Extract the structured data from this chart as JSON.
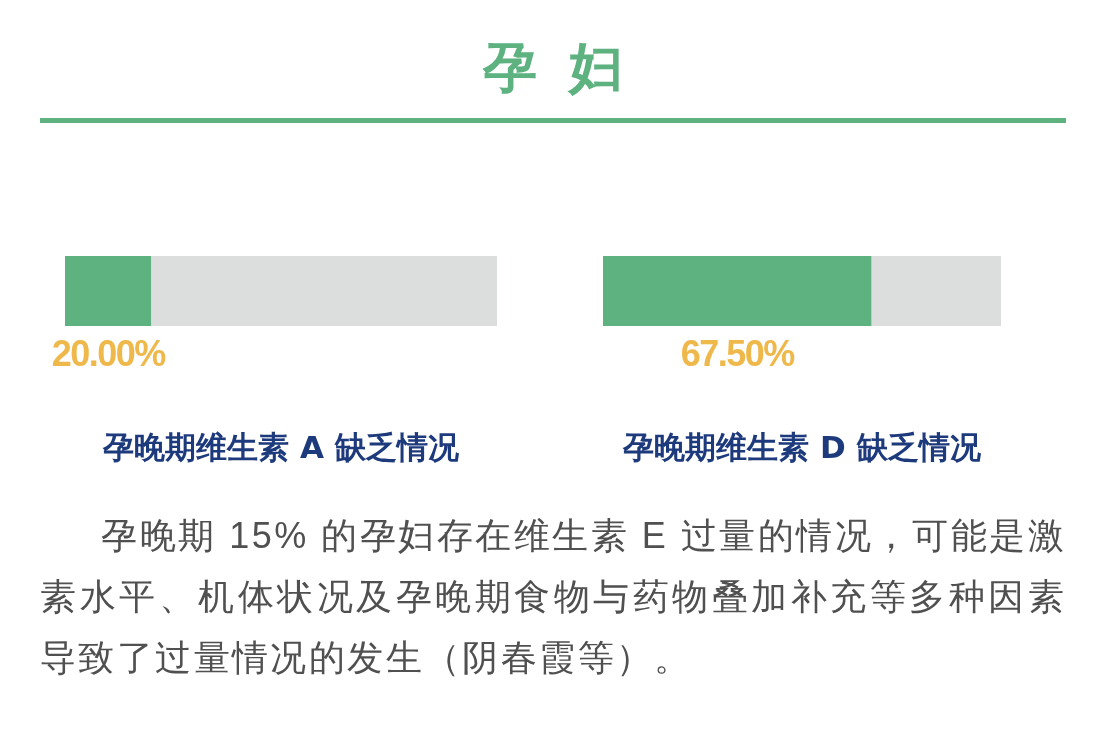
{
  "chart_data": [
    {
      "type": "other",
      "title": "孕 妇"
    },
    {
      "type": "bar",
      "orientation": "horizontal",
      "stacked": true,
      "categories": [
        null
      ],
      "series": [
        {
          "color": "#5db27f",
          "values": [
            20.0
          ],
          "value_labels": [
            "20.00%"
          ]
        },
        {
          "color": "#dcdddd",
          "values": [
            80.0
          ]
        }
      ],
      "xlim": [
        0,
        100
      ],
      "xlabel": "孕晚期维生素 A 缺乏情况"
    },
    {
      "type": "bar",
      "orientation": "horizontal",
      "stacked": true,
      "categories": [
        null
      ],
      "series": [
        {
          "color": "#5db27f",
          "values": [
            67.5
          ],
          "value_labels": [
            "67.50%"
          ]
        },
        {
          "color": "#dcdddd",
          "values": [
            32.5
          ]
        }
      ],
      "xlim": [
        0,
        100
      ],
      "xlabel": "孕晚期维生素 D 缺乏情况"
    },
    {
      "type": "other",
      "annotations": [
        "孕晚期 15% 的孕妇存在维生素 E 过量的情况，可能是激素水平、机体状况及孕晚期食物与药物叠加补充等多种因素导致了过量情况的发生（阴春霞等）。"
      ]
    }
  ]
}
